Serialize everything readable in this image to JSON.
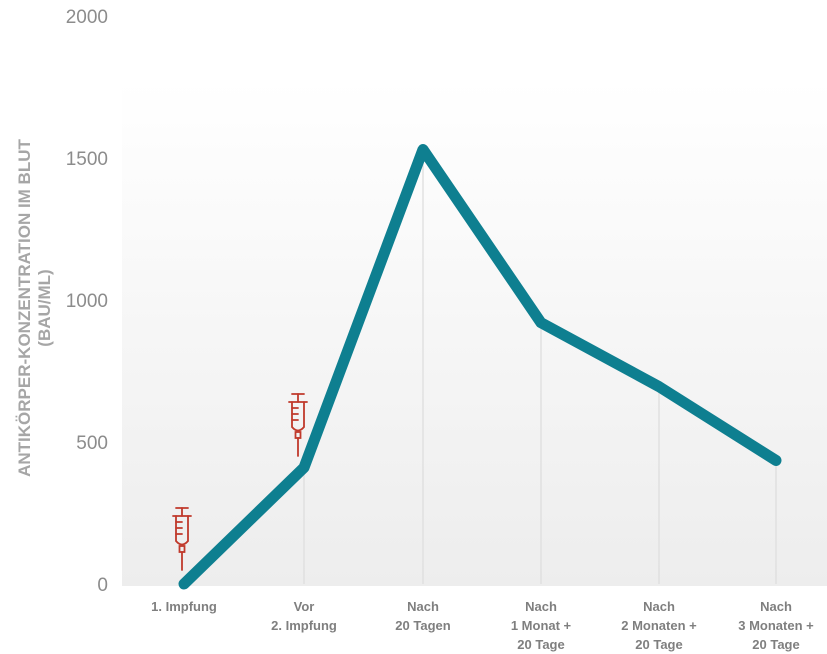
{
  "chart_data": {
    "type": "line",
    "title": "",
    "ylabel_lines": [
      "ANTIKÖRPER-KONZENTRATION IM BLUT",
      "(BAU/ML)"
    ],
    "ylim": [
      0,
      2000
    ],
    "yticks": [
      0,
      500,
      1000,
      1500,
      2000
    ],
    "grid": false,
    "categories": [
      [
        "1. Impfung"
      ],
      [
        "Vor",
        "2. Impfung"
      ],
      [
        "Nach",
        "20 Tagen"
      ],
      [
        "Nach",
        "1 Monat +",
        "20 Tage"
      ],
      [
        "Nach",
        "2 Monaten +",
        "20 Tage"
      ],
      [
        "Nach",
        "3 Monaten +",
        "20 Tage"
      ]
    ],
    "series": [
      {
        "values": [
          0,
          410,
          1530,
          920,
          695,
          435
        ]
      }
    ],
    "injection_markers": [
      "1. Impfung",
      "Vor 2. Impfung"
    ],
    "colors": {
      "line": "#0e7f90",
      "syringe": "#c0392b",
      "drop_lines": "#dedede",
      "ticks": "#8c8c8c",
      "background_top": "#ffffff",
      "background_bottom": "#ededed"
    }
  }
}
